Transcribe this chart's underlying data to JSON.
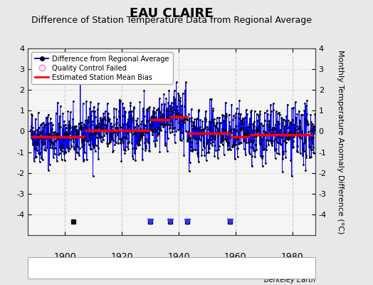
{
  "title": "EAU CLAIRE",
  "subtitle": "Difference of Station Temperature Data from Regional Average",
  "ylabel": "Monthly Temperature Anomaly Difference (°C)",
  "xlabel_ticks": [
    1900,
    1920,
    1940,
    1960,
    1980
  ],
  "ylim": [
    -5,
    4
  ],
  "yticks": [
    -4,
    -3,
    -2,
    -1,
    0,
    1,
    2,
    3,
    4
  ],
  "xlim": [
    1887,
    1988
  ],
  "bg_color": "#e8e8e8",
  "plot_bg_color": "#f5f5f5",
  "grid_color": "#cccccc",
  "line_color": "#0000ff",
  "bias_color": "#ff0000",
  "title_fontsize": 13,
  "subtitle_fontsize": 9,
  "ylabel_fontsize": 8,
  "watermark": "Berkeley Earth",
  "seed": 42,
  "x_start": 1888,
  "x_end": 1987,
  "bias_segments": [
    {
      "x_start": 1888,
      "x_end": 1907,
      "bias": -0.25
    },
    {
      "x_start": 1907,
      "x_end": 1930,
      "bias": 0.05
    },
    {
      "x_start": 1930,
      "x_end": 1937,
      "bias": 0.55
    },
    {
      "x_start": 1937,
      "x_end": 1943,
      "bias": 0.7
    },
    {
      "x_start": 1943,
      "x_end": 1958,
      "bias": -0.1
    },
    {
      "x_start": 1958,
      "x_end": 1965,
      "bias": -0.25
    },
    {
      "x_start": 1965,
      "x_end": 1987,
      "bias": -0.15
    }
  ],
  "event_markers": {
    "empirical_breaks": [
      1903,
      1930,
      1937,
      1943,
      1958
    ],
    "time_of_obs": [
      1930,
      1937,
      1943,
      1958
    ],
    "station_moves": [],
    "record_gaps": []
  },
  "vertical_gridlines": [
    1900,
    1920,
    1940,
    1960,
    1980
  ]
}
